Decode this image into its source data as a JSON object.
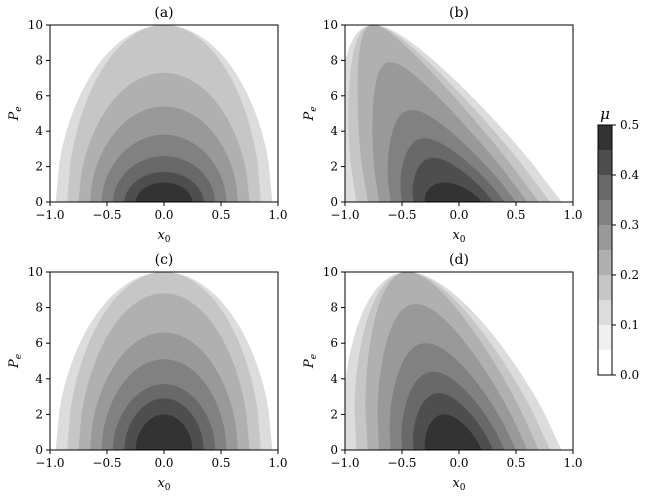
{
  "chart_data": {
    "type": "contour",
    "panels": [
      {
        "id": "a",
        "title": "(a)",
        "xlabel": "x0",
        "ylabel": "Pe",
        "xlim": [
          -1.0,
          1.0
        ],
        "ylim": [
          0,
          10
        ],
        "xticks": [
          "−1.0",
          "−0.5",
          "0.0",
          "0.5",
          "1.0"
        ],
        "yticks": [
          "0",
          "2",
          "4",
          "6",
          "8",
          "10"
        ],
        "peak": {
          "x0": 0.0,
          "Pe": 0.0
        },
        "skew": 0.0,
        "contour_half_widths_at_Pe0": [
          0.95,
          0.85,
          0.75,
          0.65,
          0.55,
          0.45,
          0.35,
          0.25
        ],
        "contour_top_Pe": [
          10.0,
          10.0,
          7.3,
          5.4,
          3.8,
          2.6,
          1.7,
          1.1
        ]
      },
      {
        "id": "b",
        "title": "(b)",
        "xlabel": "x0",
        "ylabel": "Pe",
        "xlim": [
          -1.0,
          1.0
        ],
        "ylim": [
          0,
          10
        ],
        "xticks": [
          "−1.0",
          "−0.5",
          "0.0",
          "0.5",
          "1.0"
        ],
        "yticks": [
          "0",
          "2",
          "4",
          "6",
          "8",
          "10"
        ],
        "peak": {
          "x0": -0.05,
          "Pe": 0.0
        },
        "skew": -0.07,
        "contour_half_widths_at_Pe0": [
          0.95,
          0.85,
          0.75,
          0.65,
          0.55,
          0.45,
          0.35,
          0.25
        ],
        "contour_top_Pe": [
          10.0,
          10.0,
          10.0,
          7.9,
          5.2,
          3.6,
          2.5,
          1.1
        ]
      },
      {
        "id": "c",
        "title": "(c)",
        "xlabel": "x0",
        "ylabel": "Pe",
        "xlim": [
          -1.0,
          1.0
        ],
        "ylim": [
          0,
          10
        ],
        "xticks": [
          "−1.0",
          "−0.5",
          "0.0",
          "0.5",
          "1.0"
        ],
        "yticks": [
          "0",
          "2",
          "4",
          "6",
          "8",
          "10"
        ],
        "peak": {
          "x0": 0.0,
          "Pe": 0.0
        },
        "skew": 0.0,
        "contour_half_widths_at_Pe0": [
          0.95,
          0.85,
          0.75,
          0.65,
          0.55,
          0.45,
          0.35,
          0.25
        ],
        "contour_top_Pe": [
          10.0,
          10.0,
          8.8,
          6.6,
          5.1,
          3.7,
          2.9,
          2.0
        ]
      },
      {
        "id": "d",
        "title": "(d)",
        "xlabel": "x0",
        "ylabel": "Pe",
        "xlim": [
          -1.0,
          1.0
        ],
        "ylim": [
          0,
          10
        ],
        "xticks": [
          "−1.0",
          "−0.5",
          "0.0",
          "0.5",
          "1.0"
        ],
        "yticks": [
          "0",
          "2",
          "4",
          "6",
          "8",
          "10"
        ],
        "peak": {
          "x0": -0.05,
          "Pe": 0.0
        },
        "skew": -0.04,
        "contour_half_widths_at_Pe0": [
          0.95,
          0.85,
          0.75,
          0.65,
          0.55,
          0.45,
          0.35,
          0.25
        ],
        "contour_top_Pe": [
          10.0,
          10.0,
          10.0,
          8.2,
          6.0,
          4.4,
          3.2,
          2.0
        ]
      }
    ],
    "colorbar": {
      "title": "μ",
      "range": [
        0.0,
        0.5
      ],
      "ticks": [
        "0.0",
        "0.1",
        "0.2",
        "0.3",
        "0.4",
        "0.5"
      ],
      "levels": [
        0.0,
        0.05,
        0.1,
        0.15,
        0.2,
        0.25,
        0.3,
        0.35,
        0.4,
        0.45,
        0.5
      ],
      "colors": [
        "#ffffff",
        "#f0f0f0",
        "#dcdcdc",
        "#c6c6c6",
        "#b0b0b0",
        "#999999",
        "#818181",
        "#696969",
        "#4e4e4e",
        "#333333",
        "#111111"
      ]
    },
    "grid": false
  }
}
